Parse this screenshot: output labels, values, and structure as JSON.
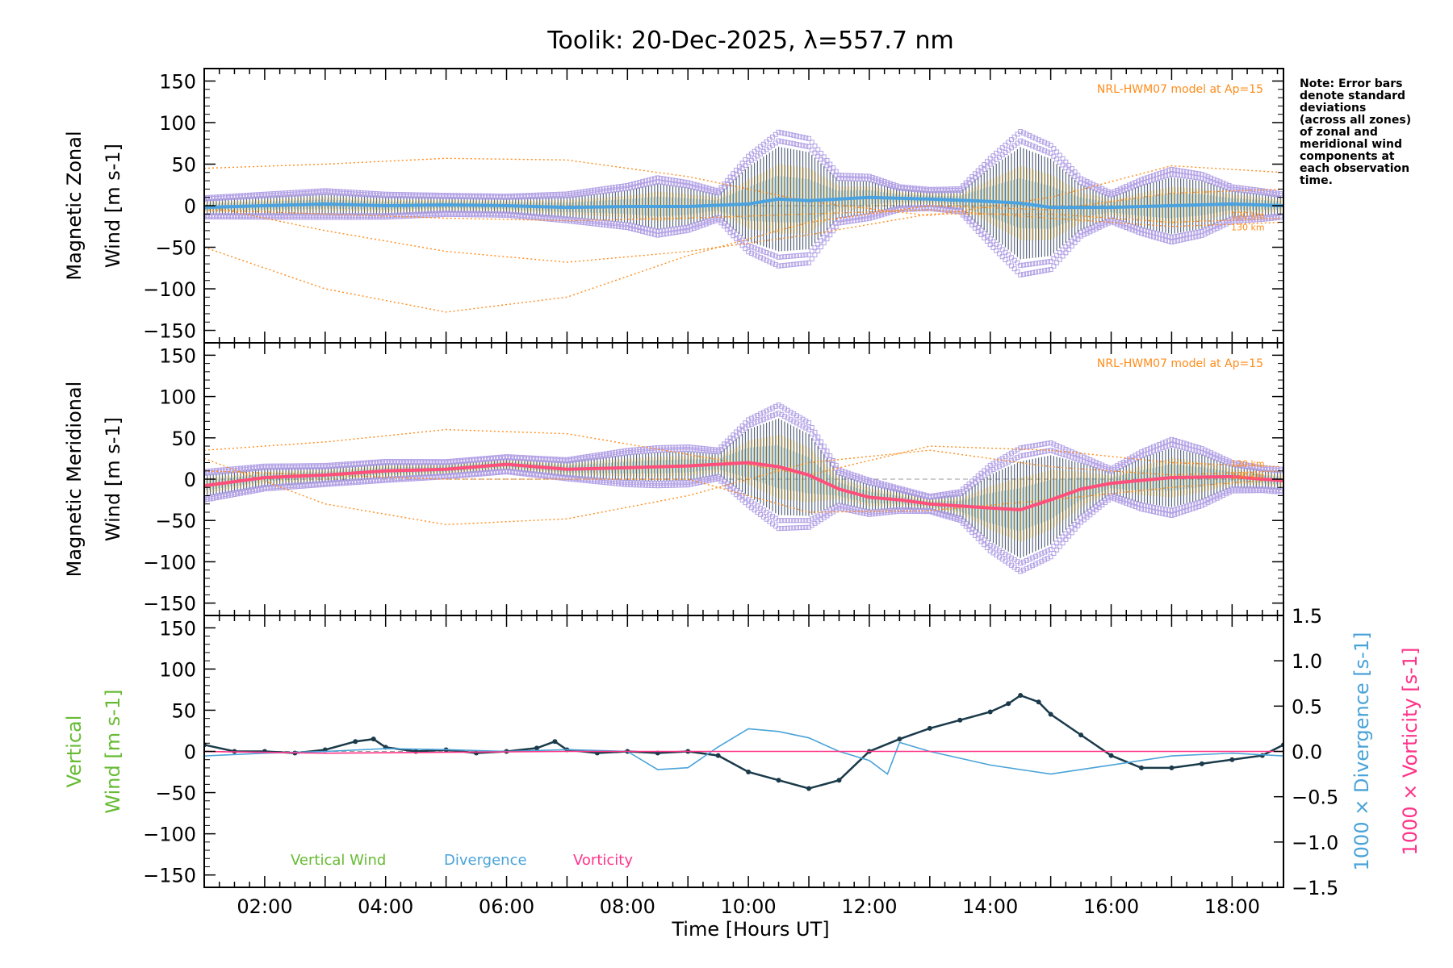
{
  "title": "Toolik: 20-Dec-2025, λ=557.7 nm",
  "xlabel": "Time [Hours UT]",
  "note": [
    "Note: Error bars",
    "denote standard",
    "deviations",
    "(across all zones)",
    "of zonal and",
    "meridional wind",
    "components at",
    "each observation",
    "time."
  ],
  "colors": {
    "model": "#ff8c1a",
    "scatter": "#b3a2e6",
    "zonal_mean": "#4aa3e0",
    "meridional_mean": "#ff4f7a",
    "vertical": "#1a3a4a",
    "vertical_label": "#66bb33",
    "divergence": "#4aa3d8",
    "vorticity": "#ff3388"
  },
  "chart_data": [
    {
      "type": "scatter",
      "panel": "zonal",
      "ylabel_line1": "Magnetic Zonal",
      "ylabel_line2": "Wind [m s",
      "ylabel_sup": "-1",
      "ylabel_end": "]",
      "xlim": [
        1.0,
        18.85
      ],
      "ylim": [
        -165,
        165
      ],
      "xticks": [
        "02:00",
        "04:00",
        "06:00",
        "08:00",
        "10:00",
        "12:00",
        "14:00",
        "16:00",
        "18:00"
      ],
      "yticks": [
        "150",
        "100",
        "50",
        "0",
        "−50",
        "−100",
        "−150"
      ],
      "model_label": "NRL-HWM07 model at Ap=15",
      "altitude_labels": [
        "120 km",
        "130 km"
      ],
      "mean_series": {
        "x": [
          1.0,
          2.0,
          3.0,
          4.0,
          5.0,
          6.0,
          7.0,
          8.0,
          9.0,
          10.0,
          10.5,
          11.0,
          11.5,
          12.0,
          13.0,
          14.0,
          14.5,
          15.0,
          16.0,
          17.0,
          18.0,
          18.85
        ],
        "y": [
          -2,
          0,
          2,
          0,
          1,
          0,
          -2,
          -1,
          -1,
          2,
          8,
          6,
          8,
          10,
          8,
          5,
          3,
          -2,
          -2,
          0,
          2,
          0
        ]
      },
      "spread": {
        "x": [
          1.0,
          2.0,
          3.0,
          4.0,
          5.0,
          6.0,
          7.0,
          8.0,
          8.5,
          9.0,
          9.5,
          10.0,
          10.5,
          11.0,
          11.5,
          12.0,
          12.5,
          13.0,
          13.5,
          14.0,
          14.5,
          15.0,
          15.5,
          16.0,
          16.5,
          17.0,
          17.5,
          18.0,
          18.5,
          18.85
        ],
        "sd": [
          10,
          12,
          14,
          12,
          10,
          10,
          14,
          22,
          30,
          25,
          15,
          50,
          70,
          65,
          25,
          22,
          12,
          10,
          12,
          45,
          75,
          65,
          30,
          15,
          28,
          38,
          32,
          18,
          15,
          12
        ]
      },
      "model_curves": [
        {
          "x": [
            1.0,
            3.0,
            5.0,
            7.0,
            9.0,
            11.0,
            13.0,
            15.0,
            17.0,
            18.85
          ],
          "y": [
            45,
            50,
            57,
            55,
            35,
            5,
            -12,
            10,
            48,
            40
          ]
        },
        {
          "x": [
            1.0,
            3.0,
            5.0,
            7.0,
            9.0,
            11.0,
            13.0,
            15.0,
            17.0,
            18.85
          ],
          "y": [
            -50,
            -100,
            -128,
            -110,
            -60,
            -20,
            0,
            -5,
            15,
            20
          ]
        },
        {
          "x": [
            1.0,
            3.0,
            5.0,
            7.0,
            9.0,
            11.0,
            13.0,
            15.0,
            17.0,
            18.85
          ],
          "y": [
            0,
            -30,
            -55,
            -68,
            -55,
            -35,
            -10,
            -10,
            -20,
            -15
          ]
        },
        {
          "x": [
            1.0,
            3.0,
            5.0,
            7.0,
            9.0,
            11.0,
            13.0,
            15.0,
            17.0,
            18.85
          ],
          "y": [
            -5,
            -10,
            -15,
            -18,
            -15,
            -10,
            -5,
            -15,
            -25,
            -20
          ]
        }
      ]
    },
    {
      "type": "scatter",
      "panel": "meridional",
      "ylabel_line1": "Magnetic Meridional",
      "ylabel_line2": "Wind [m s",
      "ylabel_sup": "-1",
      "ylabel_end": "]",
      "xlim": [
        1.0,
        18.85
      ],
      "ylim": [
        -165,
        165
      ],
      "xticks": [
        "02:00",
        "04:00",
        "06:00",
        "08:00",
        "10:00",
        "12:00",
        "14:00",
        "16:00",
        "18:00"
      ],
      "yticks": [
        "150",
        "100",
        "50",
        "0",
        "−50",
        "−100",
        "−150"
      ],
      "model_label": "NRL-HWM07 model at Ap=15",
      "altitude_labels": [
        "120 km",
        "130 km"
      ],
      "mean_series": {
        "x": [
          1.0,
          2.0,
          3.0,
          4.0,
          5.0,
          6.0,
          7.0,
          8.0,
          9.0,
          10.0,
          10.5,
          11.0,
          11.5,
          12.0,
          12.5,
          13.0,
          14.0,
          14.5,
          15.0,
          15.5,
          16.0,
          17.0,
          18.0,
          18.85
        ],
        "y": [
          -8,
          2,
          5,
          10,
          12,
          18,
          12,
          14,
          16,
          20,
          15,
          5,
          -12,
          -22,
          -25,
          -30,
          -35,
          -37,
          -25,
          -12,
          -5,
          2,
          3,
          -2
        ]
      },
      "spread": {
        "x": [
          1.0,
          2.0,
          3.0,
          4.0,
          5.0,
          6.0,
          7.0,
          8.0,
          8.5,
          9.0,
          9.5,
          10.0,
          10.5,
          11.0,
          11.5,
          12.0,
          12.5,
          13.0,
          13.5,
          14.0,
          14.5,
          15.0,
          15.5,
          16.0,
          16.5,
          17.0,
          17.5,
          18.0,
          18.5,
          18.85
        ],
        "sd": [
          15,
          12,
          10,
          10,
          8,
          8,
          10,
          18,
          20,
          20,
          15,
          45,
          65,
          55,
          20,
          18,
          12,
          8,
          15,
          45,
          65,
          60,
          35,
          15,
          30,
          40,
          30,
          15,
          12,
          12
        ]
      },
      "model_curves": [
        {
          "x": [
            1.0,
            3.0,
            5.0,
            7.0,
            9.0,
            11.0,
            13.0,
            15.0,
            17.0,
            18.85
          ],
          "y": [
            35,
            45,
            60,
            55,
            30,
            5,
            40,
            35,
            20,
            15
          ]
        },
        {
          "x": [
            1.0,
            3.0,
            5.0,
            7.0,
            9.0,
            11.0,
            13.0,
            15.0,
            17.0,
            18.85
          ],
          "y": [
            25,
            -30,
            -55,
            -48,
            -20,
            20,
            35,
            15,
            5,
            10
          ]
        },
        {
          "x": [
            1.0,
            3.0,
            5.0,
            7.0,
            9.0,
            11.0,
            13.0,
            15.0,
            17.0,
            18.85
          ],
          "y": [
            10,
            5,
            0,
            0,
            0,
            -40,
            -38,
            -25,
            -10,
            0
          ]
        }
      ]
    },
    {
      "type": "line",
      "panel": "vertical",
      "ylabel_line1": "Vertical",
      "ylabel_line2": "Wind [m s",
      "ylabel_sup": "-1",
      "ylabel_end": "]",
      "xlim": [
        1.0,
        18.85
      ],
      "ylim": [
        -165,
        165
      ],
      "xticks": [
        "02:00",
        "04:00",
        "06:00",
        "08:00",
        "10:00",
        "12:00",
        "14:00",
        "16:00",
        "18:00"
      ],
      "yticks": [
        "150",
        "100",
        "50",
        "0",
        "−50",
        "−100",
        "−150"
      ],
      "y2lim": [
        -1.5,
        1.5
      ],
      "y2ticks": [
        "1.5",
        "1.0",
        "0.5",
        "0.0",
        "−0.5",
        "−1.0",
        "−1.5"
      ],
      "y2label_div": "1000 × Divergence [s",
      "y2label_vort": "1000 × Vorticity [s",
      "y2label_sup": "-1",
      "y2label_end": "]",
      "legend": [
        "Vertical Wind",
        "Divergence",
        "Vorticity"
      ],
      "series": [
        {
          "name": "Vertical Wind",
          "x": [
            1.0,
            1.5,
            2.0,
            2.5,
            3.0,
            3.5,
            3.8,
            4.0,
            4.5,
            5.0,
            5.5,
            6.0,
            6.5,
            6.8,
            7.0,
            7.5,
            8.0,
            8.5,
            9.0,
            9.5,
            10.0,
            10.5,
            11.0,
            11.5,
            12.0,
            12.5,
            13.0,
            13.5,
            14.0,
            14.3,
            14.5,
            14.8,
            15.0,
            15.5,
            16.0,
            16.5,
            17.0,
            17.5,
            18.0,
            18.5,
            18.85
          ],
          "values": [
            8,
            0,
            0,
            -2,
            2,
            12,
            15,
            5,
            0,
            2,
            -2,
            0,
            4,
            12,
            2,
            -2,
            0,
            -2,
            0,
            -5,
            -25,
            -35,
            -45,
            -35,
            0,
            15,
            28,
            38,
            48,
            58,
            68,
            60,
            45,
            20,
            -5,
            -20,
            -20,
            -15,
            -10,
            -5,
            8
          ]
        },
        {
          "name": "Divergence",
          "x": [
            1.0,
            2.0,
            3.0,
            4.0,
            5.0,
            6.0,
            7.0,
            8.0,
            8.5,
            9.0,
            9.5,
            10.0,
            10.5,
            11.0,
            11.5,
            12.0,
            12.3,
            12.5,
            13.0,
            14.0,
            15.0,
            16.0,
            17.0,
            18.0,
            18.85
          ],
          "values": [
            -0.05,
            -0.02,
            0.0,
            0.03,
            0.02,
            0.0,
            0.02,
            0.0,
            -0.2,
            -0.18,
            0.05,
            0.25,
            0.22,
            0.15,
            0.0,
            -0.1,
            -0.25,
            0.1,
            0.0,
            -0.15,
            -0.25,
            -0.15,
            -0.05,
            -0.02,
            -0.05
          ]
        },
        {
          "name": "Vorticity",
          "x": [
            1.0,
            3.0,
            5.0,
            7.0,
            9.0,
            11.0,
            13.0,
            15.0,
            17.0,
            18.85
          ],
          "values": [
            0.0,
            -0.02,
            -0.01,
            0.0,
            0.0,
            0.0,
            0.0,
            0.0,
            0.0,
            0.0
          ]
        }
      ]
    }
  ]
}
